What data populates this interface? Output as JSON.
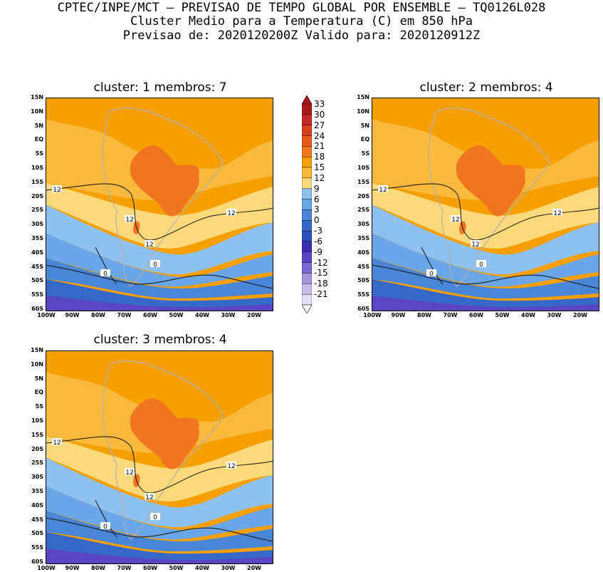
{
  "header": {
    "line1": "CPTEC/INPE/MCT – PREVISAO DE TEMPO GLOBAL POR ENSEMBLE – TQ0126L028",
    "line2": "Cluster Medio para a Temperatura (C) em 850 hPa",
    "line3": "Previsao de: 2020120200Z   Valido para: 2020120912Z"
  },
  "panels": [
    {
      "title": "cluster: 1  membros: 7"
    },
    {
      "title": "cluster: 2  membros: 4"
    },
    {
      "title": "cluster: 3  membros: 4"
    }
  ],
  "axes": {
    "lat_labels": [
      "15N",
      "10N",
      "5N",
      "EQ",
      "5S",
      "10S",
      "15S",
      "20S",
      "25S",
      "30S",
      "35S",
      "40S",
      "45S",
      "50S",
      "55S",
      "60S"
    ],
    "lon_labels": [
      "100W",
      "90W",
      "80W",
      "70W",
      "60W",
      "50W",
      "40W",
      "30W",
      "20W"
    ]
  },
  "contour_labels": [
    "12",
    "12",
    "12",
    "12",
    "0",
    "0"
  ],
  "colorbar": {
    "levels": [
      "33",
      "30",
      "27",
      "24",
      "21",
      "18",
      "15",
      "12",
      "9",
      "6",
      "3",
      "0",
      "-3",
      "-6",
      "-9",
      "-12",
      "-15",
      "-18",
      "-21"
    ],
    "colors": [
      "#a81a1a",
      "#c62828",
      "#d84020",
      "#e85a1a",
      "#f07520",
      "#f5a000",
      "#f9b93d",
      "#fcd97a",
      "#8fc1f0",
      "#6aa6e8",
      "#4a86d8",
      "#3568c8",
      "#2a4fb8",
      "#3b2fb0",
      "#5a45c4",
      "#7c6ad2",
      "#a295de",
      "#c6bdea",
      "#e3defa"
    ]
  }
}
